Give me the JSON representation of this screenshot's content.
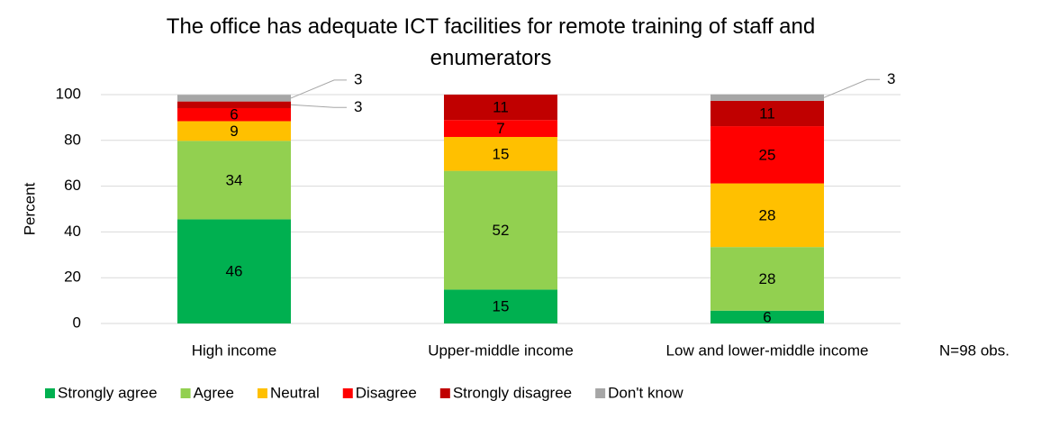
{
  "chart_data": {
    "type": "stacked_bar",
    "title": "The office has adequate ICT facilities for remote training of staff and enumerators",
    "ylabel": "Percent",
    "annotation": "N=98 obs.",
    "categories": [
      "High income",
      "Upper-middle income",
      "Low and lower-middle income"
    ],
    "series": [
      {
        "name": "Strongly agree",
        "color": "#00b050",
        "values": [
          45.5,
          14.8,
          5.6
        ],
        "value_labels": [
          "46",
          "15",
          "6"
        ]
      },
      {
        "name": "Agree",
        "color": "#92d050",
        "values": [
          34.3,
          51.9,
          27.8
        ],
        "value_labels": [
          "34",
          "52",
          "28"
        ]
      },
      {
        "name": "Neutral",
        "color": "#ffc000",
        "values": [
          8.6,
          14.8,
          27.8
        ],
        "value_labels": [
          "9",
          "15",
          "28"
        ]
      },
      {
        "name": "Disagree",
        "color": "#ff0000",
        "values": [
          5.7,
          7.4,
          25
        ],
        "value_labels": [
          "6",
          "7",
          "25"
        ]
      },
      {
        "name": "Strongly disagree",
        "color": "#c00000",
        "values": [
          2.9,
          11.1,
          11.1
        ],
        "value_labels": [
          "3",
          "11",
          "11"
        ]
      },
      {
        "name": "Don't know",
        "color": "#a6a6a6",
        "values": [
          2.9,
          null,
          2.8
        ],
        "value_labels": [
          "3",
          null,
          "3"
        ]
      }
    ],
    "ylim": [
      0,
      100
    ],
    "yticks": [
      0,
      20,
      40,
      60,
      80,
      100
    ],
    "grid": true,
    "legend": "bottom"
  }
}
